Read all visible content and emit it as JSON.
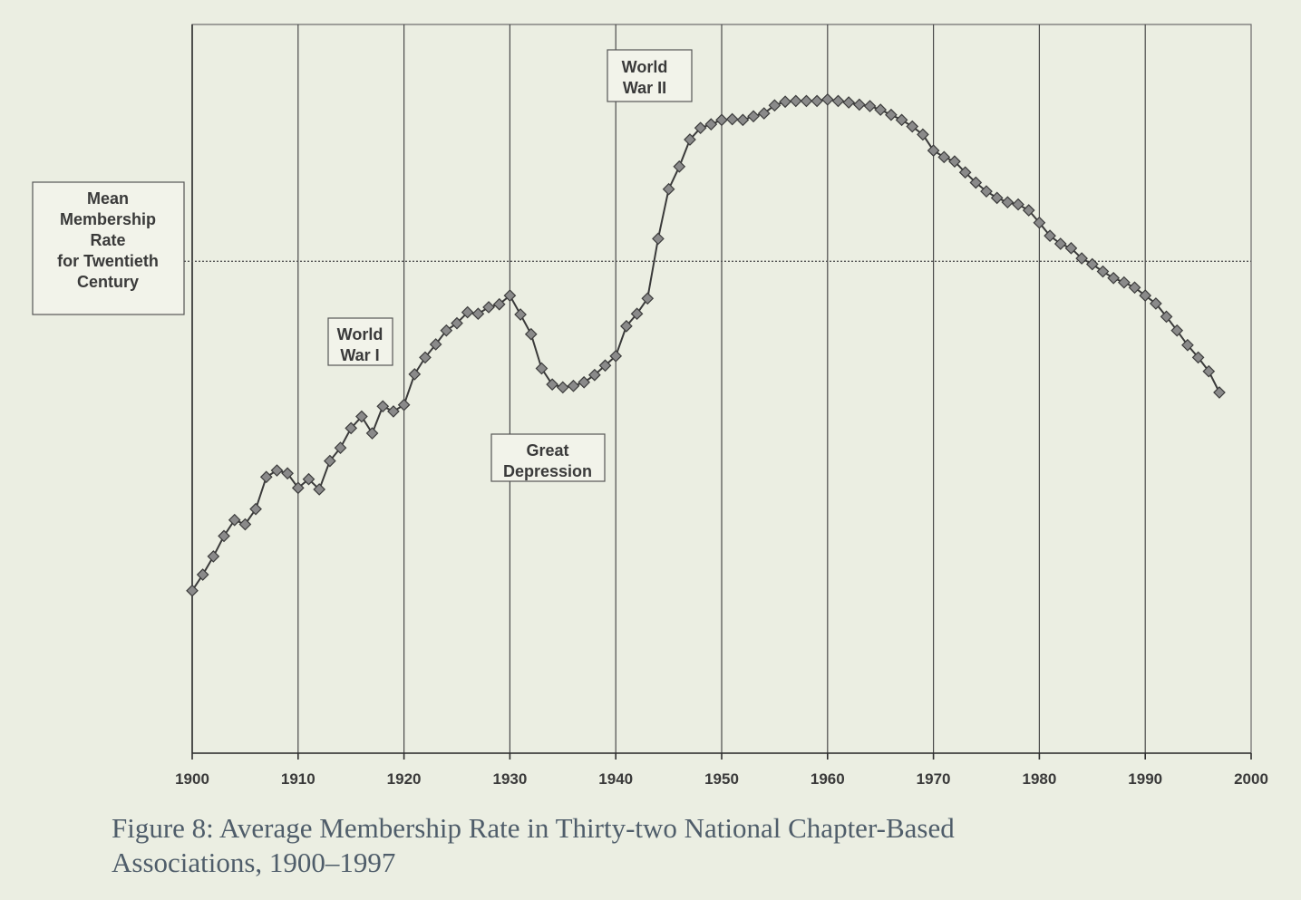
{
  "caption": {
    "line1": "Figure 8: Average Membership Rate in Thirty-two National Chapter-Based",
    "line2": "Associations, 1900–1997"
  },
  "colors": {
    "background": "#ebeee2",
    "line": "#3a3a3a",
    "marker": "#8a8a8a",
    "caption": "#4f5d6a"
  },
  "chart_data": {
    "type": "line",
    "title": "",
    "xlabel": "",
    "ylabel": "",
    "xlim": [
      1900,
      2000
    ],
    "ylim": [
      0,
      100
    ],
    "x_ticks": [
      "1900",
      "1910",
      "1920",
      "1930",
      "1940",
      "1950",
      "1960",
      "1970",
      "1980",
      "1990",
      "2000"
    ],
    "grid": "vertical",
    "marker": "diamond",
    "mean_line": {
      "value": 67.5,
      "label": [
        "Mean",
        "Membership",
        "Rate",
        "for Twentieth",
        "Century"
      ]
    },
    "annotations": [
      {
        "id": "wwi",
        "lines": [
          "World",
          "War I"
        ]
      },
      {
        "id": "depression",
        "lines": [
          "Great",
          "Depression"
        ]
      },
      {
        "id": "wwii",
        "lines": [
          "World",
          "War II"
        ]
      }
    ],
    "series": [
      {
        "x": [
          1900,
          1901,
          1902,
          1903,
          1904,
          1905,
          1906,
          1907,
          1908,
          1909,
          1910,
          1911,
          1912,
          1913,
          1914,
          1915,
          1916,
          1917,
          1918,
          1919,
          1920,
          1921,
          1922,
          1923,
          1924,
          1925,
          1926,
          1927,
          1928,
          1929,
          1930,
          1931,
          1932,
          1933,
          1934,
          1935,
          1936,
          1937,
          1938,
          1939,
          1940,
          1941,
          1942,
          1943,
          1944,
          1945,
          1946,
          1947,
          1948,
          1949,
          1950,
          1951,
          1952,
          1953,
          1954,
          1955,
          1956,
          1957,
          1958,
          1959,
          1960,
          1961,
          1962,
          1963,
          1964,
          1965,
          1966,
          1967,
          1968,
          1969,
          1970,
          1971,
          1972,
          1973,
          1974,
          1975,
          1976,
          1977,
          1978,
          1979,
          1980,
          1981,
          1982,
          1983,
          1984,
          1985,
          1986,
          1987,
          1988,
          1989,
          1990,
          1991,
          1992,
          1993,
          1994,
          1995,
          1996,
          1997
        ],
        "y": [
          22.3,
          24.5,
          27.0,
          29.8,
          32.0,
          31.4,
          33.5,
          37.9,
          38.8,
          38.4,
          36.4,
          37.6,
          36.2,
          40.1,
          41.9,
          44.6,
          46.2,
          43.9,
          47.6,
          46.9,
          47.8,
          52.0,
          54.3,
          56.1,
          58.0,
          59.0,
          60.5,
          60.3,
          61.2,
          61.6,
          62.8,
          60.2,
          57.5,
          52.8,
          50.6,
          50.2,
          50.4,
          50.9,
          51.9,
          53.2,
          54.5,
          58.6,
          60.3,
          62.4,
          70.6,
          77.4,
          80.5,
          84.2,
          85.8,
          86.3,
          86.9,
          87.0,
          86.9,
          87.4,
          87.8,
          88.9,
          89.4,
          89.5,
          89.5,
          89.5,
          89.7,
          89.5,
          89.3,
          89.0,
          88.8,
          88.3,
          87.6,
          86.9,
          86.0,
          84.9,
          82.7,
          81.8,
          81.2,
          79.7,
          78.3,
          77.1,
          76.2,
          75.6,
          75.3,
          74.5,
          72.8,
          71.0,
          69.9,
          69.3,
          67.9,
          67.1,
          66.1,
          65.2,
          64.6,
          63.9,
          62.8,
          61.7,
          59.9,
          58.0,
          56.0,
          54.3,
          52.4,
          49.5
        ]
      }
    ]
  }
}
